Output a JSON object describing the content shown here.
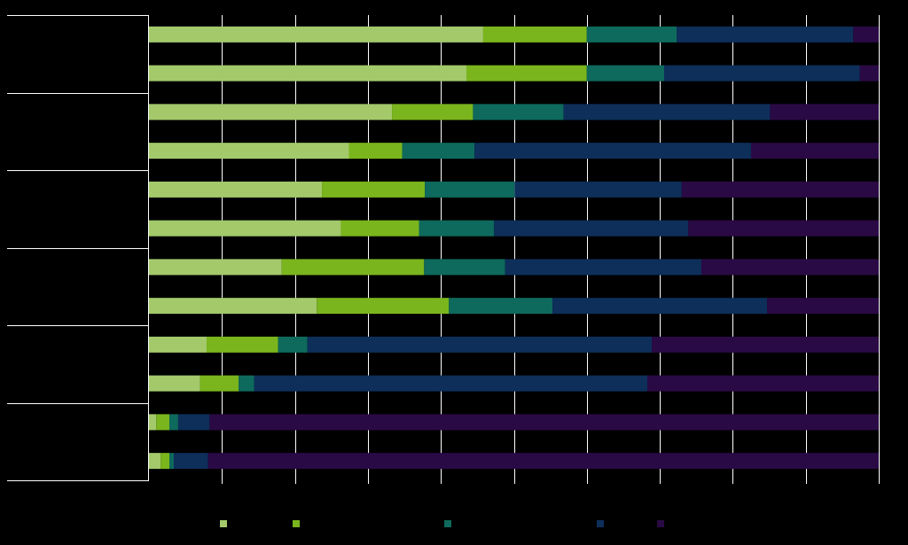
{
  "chart_data": {
    "type": "bar",
    "orientation": "horizontal",
    "stacked": true,
    "normalized": true,
    "xlim": [
      0,
      100
    ],
    "x_tick_step": 10,
    "grid": true,
    "legend_position": "bottom",
    "title": "",
    "xlabel": "",
    "ylabel": "",
    "categories": [
      "",
      "",
      "",
      "",
      "",
      "",
      "",
      "",
      "",
      "",
      "",
      ""
    ],
    "groups": [
      "",
      "",
      "",
      "",
      "",
      ""
    ],
    "series": [
      {
        "name": "",
        "color": "#a3c96b",
        "values": [
          45.8,
          43.5,
          33.3,
          27.4,
          23.7,
          26.3,
          18.2,
          23.0,
          7.9,
          7.0,
          1.0,
          1.6
        ]
      },
      {
        "name": "",
        "color": "#7ab51d",
        "values": [
          14.2,
          16.5,
          11.1,
          7.3,
          14.1,
          10.7,
          19.5,
          18.1,
          9.8,
          5.3,
          1.8,
          1.2
        ]
      },
      {
        "name": "",
        "color": "#0e6a5c",
        "values": [
          12.3,
          10.6,
          12.4,
          9.9,
          12.3,
          10.3,
          11.1,
          14.2,
          4.0,
          2.1,
          1.2,
          0.6
        ]
      },
      {
        "name": "",
        "color": "#0d2f5a",
        "values": [
          24.2,
          26.8,
          28.3,
          37.9,
          22.9,
          26.6,
          26.9,
          29.4,
          47.2,
          53.9,
          4.3,
          4.7
        ]
      },
      {
        "name": "",
        "color": "#2a0a45",
        "values": [
          3.5,
          2.6,
          14.9,
          17.5,
          27.0,
          26.1,
          24.3,
          15.3,
          31.1,
          31.7,
          91.7,
          91.9
        ]
      }
    ]
  }
}
